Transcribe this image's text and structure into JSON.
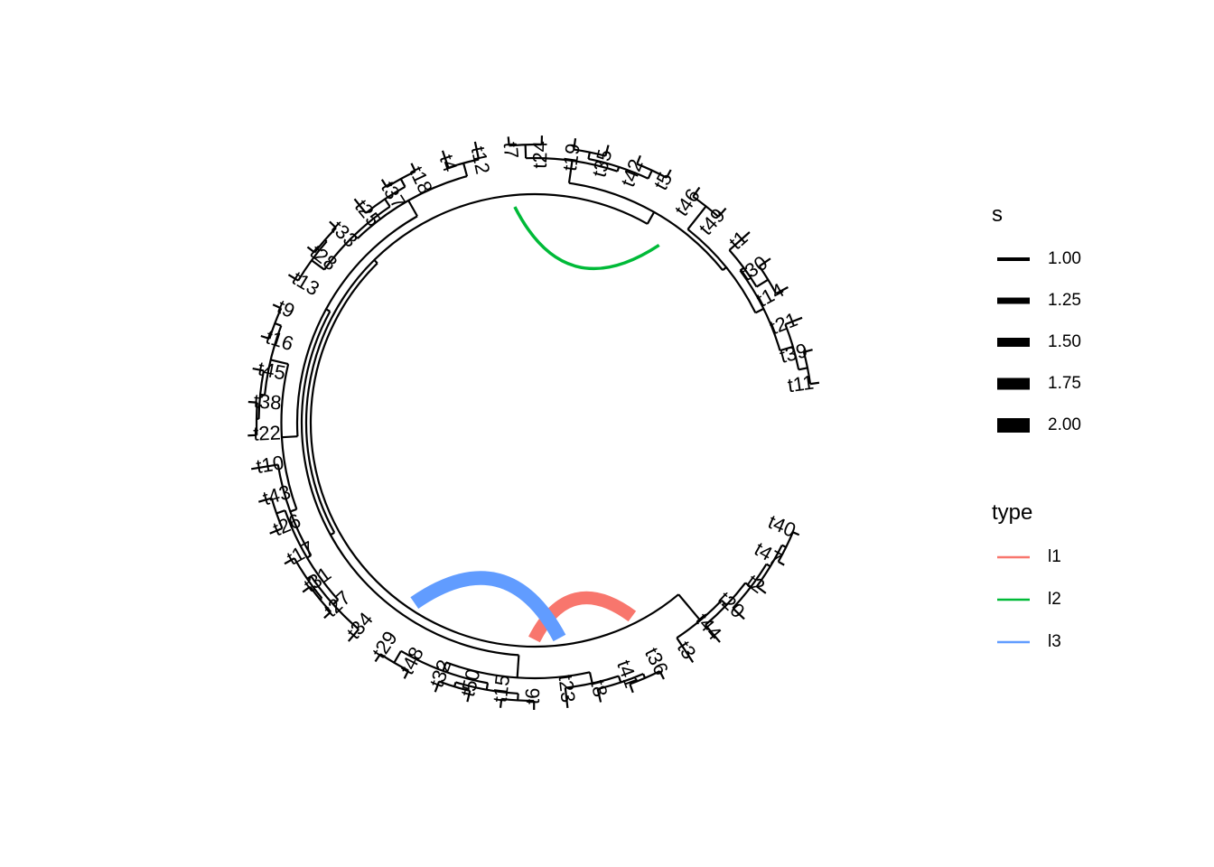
{
  "tree": {
    "layout": "fan",
    "open_angle_deg": 22,
    "tips": [
      "t11",
      "t39",
      "t21",
      "t14",
      "t30",
      "t1",
      "t49",
      "t46",
      "t5",
      "t42",
      "t35",
      "t19",
      "t24",
      "t7",
      "t12",
      "t4",
      "t18",
      "t37",
      "t25",
      "t33",
      "t28",
      "t13",
      "t9",
      "t16",
      "t45",
      "t38",
      "t22",
      "t10",
      "t43",
      "t26",
      "t17",
      "t31",
      "t27",
      "t34",
      "t29",
      "t48",
      "t32",
      "t50",
      "t15",
      "t6",
      "t23",
      "t8",
      "t41",
      "t36",
      "t3",
      "t44",
      "t20",
      "t2",
      "t47",
      "t40"
    ],
    "tip_depth": 1.0,
    "internal_nodes": [
      {
        "id": "n1",
        "children": [
          "t11",
          "t39"
        ],
        "depth": 0.96
      },
      {
        "id": "n2",
        "children": [
          "n1",
          "t21"
        ],
        "depth": 0.92
      },
      {
        "id": "n3",
        "children": [
          "t30",
          "t14"
        ],
        "depth": 0.94
      },
      {
        "id": "n4",
        "children": [
          "n3",
          "t1"
        ],
        "depth": 0.88
      },
      {
        "id": "n5",
        "children": [
          "n2",
          "n4"
        ],
        "depth": 0.86
      },
      {
        "id": "n6",
        "children": [
          "t46",
          "t49"
        ],
        "depth": 0.95
      },
      {
        "id": "n7",
        "children": [
          "n6",
          "n5"
        ],
        "depth": 0.82
      },
      {
        "id": "n8",
        "children": [
          "t5",
          "t42"
        ],
        "depth": 0.96
      },
      {
        "id": "n9",
        "children": [
          "t19",
          "t35"
        ],
        "depth": 0.95
      },
      {
        "id": "n10",
        "children": [
          "n9",
          "n8"
        ],
        "depth": 0.92
      },
      {
        "id": "n11",
        "children": [
          "t24",
          "t7"
        ],
        "depth": 0.96
      },
      {
        "id": "n12",
        "children": [
          "n11",
          "n10"
        ],
        "depth": 0.9
      },
      {
        "id": "n13",
        "children": [
          "n12",
          "n7"
        ],
        "depth": 0.8
      },
      {
        "id": "n14",
        "children": [
          "t12",
          "t4"
        ],
        "depth": 0.92
      },
      {
        "id": "n15",
        "children": [
          "t18",
          "t37"
        ],
        "depth": 0.96
      },
      {
        "id": "n16",
        "children": [
          "n15",
          "t25"
        ],
        "depth": 0.92
      },
      {
        "id": "n17",
        "children": [
          "t33",
          "t28"
        ],
        "depth": 0.96
      },
      {
        "id": "n18",
        "children": [
          "n17",
          "t13"
        ],
        "depth": 0.95
      },
      {
        "id": "n19",
        "children": [
          "n16",
          "n18"
        ],
        "depth": 0.88
      },
      {
        "id": "n20",
        "children": [
          "n14",
          "n19"
        ],
        "depth": 0.86
      },
      {
        "id": "n21",
        "children": [
          "t9",
          "t16"
        ],
        "depth": 0.96
      },
      {
        "id": "n22",
        "children": [
          "t38",
          "t22"
        ],
        "depth": 0.96
      },
      {
        "id": "n23",
        "children": [
          "t45",
          "n22"
        ],
        "depth": 0.95
      },
      {
        "id": "n24",
        "children": [
          "n21",
          "n23"
        ],
        "depth": 0.93
      },
      {
        "id": "n25",
        "children": [
          "t43",
          "t26"
        ],
        "depth": 0.94
      },
      {
        "id": "n26",
        "children": [
          "t31",
          "t27"
        ],
        "depth": 0.96
      },
      {
        "id": "n27",
        "children": [
          "t17",
          "n26"
        ],
        "depth": 0.95
      },
      {
        "id": "n28",
        "children": [
          "n27",
          "t34"
        ],
        "depth": 0.93
      },
      {
        "id": "n29",
        "children": [
          "n25",
          "n28"
        ],
        "depth": 0.9
      },
      {
        "id": "n30",
        "children": [
          "t10",
          "n29"
        ],
        "depth": 0.88
      },
      {
        "id": "n31",
        "children": [
          "n24",
          "n30"
        ],
        "depth": 0.85
      },
      {
        "id": "n32",
        "children": [
          "n20",
          "n31"
        ],
        "depth": 0.78
      },
      {
        "id": "n33",
        "children": [
          "t29",
          "t48"
        ],
        "depth": 0.96
      },
      {
        "id": "n34",
        "children": [
          "t32",
          "t50"
        ],
        "depth": 0.95
      },
      {
        "id": "n35",
        "children": [
          "t15",
          "t6"
        ],
        "depth": 0.96
      },
      {
        "id": "n36",
        "children": [
          "n34",
          "n35"
        ],
        "depth": 0.93
      },
      {
        "id": "n37",
        "children": [
          "n33",
          "n36"
        ],
        "depth": 0.9
      },
      {
        "id": "n38",
        "children": [
          "t41",
          "t36"
        ],
        "depth": 0.96
      },
      {
        "id": "n39",
        "children": [
          "t8",
          "n38"
        ],
        "depth": 0.94
      },
      {
        "id": "n40",
        "children": [
          "t23",
          "n39"
        ],
        "depth": 0.91
      },
      {
        "id": "n41",
        "children": [
          "n37",
          "n40"
        ],
        "depth": 0.86
      },
      {
        "id": "n42",
        "children": [
          "n32",
          "n41"
        ],
        "depth": 0.76
      },
      {
        "id": "n43",
        "children": [
          "n13",
          "n42"
        ],
        "depth": 0.74
      },
      {
        "id": "n44",
        "children": [
          "t47",
          "t40"
        ],
        "depth": 0.97
      },
      {
        "id": "n45",
        "children": [
          "t2",
          "n44"
        ],
        "depth": 0.95
      },
      {
        "id": "n46",
        "children": [
          "t20",
          "n45"
        ],
        "depth": 0.93
      },
      {
        "id": "n47",
        "children": [
          "t44",
          "n46"
        ],
        "depth": 0.9
      },
      {
        "id": "n48",
        "children": [
          "t3",
          "n47"
        ],
        "depth": 0.87
      },
      {
        "id": "root",
        "children": [
          "n43",
          "n48"
        ],
        "depth": 0.72
      }
    ],
    "links": [
      {
        "from": "t36",
        "to": "t6",
        "type": "l1",
        "size": 1.9
      },
      {
        "from": "t7",
        "to": "t46",
        "type": "l2",
        "size": 1.0
      },
      {
        "from": "t29",
        "to": "t23",
        "type": "l3",
        "size": 2.0
      }
    ]
  },
  "legend": {
    "size": {
      "title": "s",
      "entries": [
        {
          "label": "1.00",
          "value": 1.0
        },
        {
          "label": "1.25",
          "value": 1.25
        },
        {
          "label": "1.50",
          "value": 1.5
        },
        {
          "label": "1.75",
          "value": 1.75
        },
        {
          "label": "2.00",
          "value": 2.0
        }
      ]
    },
    "type": {
      "title": "type",
      "entries": [
        {
          "label": "l1",
          "color": "#F8766D"
        },
        {
          "label": "l2",
          "color": "#00BA38"
        },
        {
          "label": "l3",
          "color": "#619CFF"
        }
      ]
    }
  }
}
